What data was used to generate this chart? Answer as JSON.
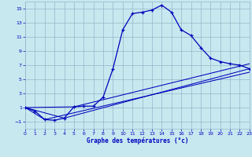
{
  "title": "Graphe des températures (°c)",
  "bg_color": "#c8e8f0",
  "grid_color": "#90b8c8",
  "line_color": "#0000bb",
  "xlim": [
    0,
    23
  ],
  "ylim": [
    -2,
    16
  ],
  "xticks": [
    0,
    1,
    2,
    3,
    4,
    5,
    6,
    7,
    8,
    9,
    10,
    11,
    12,
    13,
    14,
    15,
    16,
    17,
    18,
    19,
    20,
    21,
    22,
    23
  ],
  "yticks": [
    -1,
    1,
    3,
    5,
    7,
    9,
    11,
    13,
    15
  ],
  "main_x": [
    0,
    1,
    2,
    3,
    4,
    5,
    6,
    7,
    8,
    9,
    10,
    11,
    12,
    13,
    14,
    15,
    16,
    17,
    18,
    19,
    20,
    21,
    22,
    23
  ],
  "main_y": [
    1.0,
    0.5,
    -0.7,
    -0.8,
    -0.5,
    1.1,
    1.2,
    1.2,
    2.5,
    6.5,
    12.0,
    14.3,
    14.5,
    14.8,
    15.5,
    14.5,
    12.0,
    11.2,
    9.5,
    8.0,
    7.5,
    7.2,
    7.0,
    6.5
  ],
  "line2_x": [
    0,
    2,
    23
  ],
  "line2_y": [
    1.0,
    -0.7,
    6.0
  ],
  "line3_x": [
    0,
    4,
    23
  ],
  "line3_y": [
    1.0,
    -0.5,
    6.5
  ],
  "line4_x": [
    0,
    5,
    23
  ],
  "line4_y": [
    1.0,
    1.1,
    7.2
  ]
}
